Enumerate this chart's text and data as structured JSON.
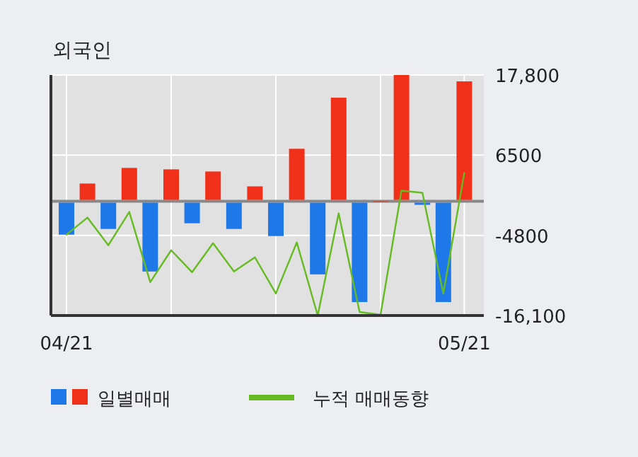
{
  "chart_data": {
    "type": "bar",
    "title": "외국인",
    "categories": [
      "04/21",
      null,
      null,
      null,
      null,
      null,
      null,
      null,
      null,
      null,
      null,
      null,
      null,
      null,
      null,
      null,
      null,
      null,
      null,
      "05/21"
    ],
    "series": [
      {
        "name": "일별매매",
        "colors": [
          "#1f78e8",
          "#f03018",
          "#1f78e8",
          "#f03018",
          "#1f78e8",
          "#f03018",
          "#1f78e8",
          "#f03018",
          "#1f78e8",
          "#f03018",
          "#1f78e8",
          "#f03018",
          "#1f78e8",
          "#f03018",
          "#1f78e8",
          "#f03018",
          "#f03018",
          "#1f78e8",
          "#1f78e8",
          "#f03018"
        ],
        "values": [
          -4700,
          2500,
          -3900,
          4700,
          -9900,
          4500,
          -3100,
          4200,
          -3900,
          2100,
          -4900,
          7400,
          -10300,
          14600,
          -14200,
          0,
          17800,
          -500,
          -14200,
          16900
        ]
      },
      {
        "name": "누적 매매동향",
        "type": "line",
        "color": "#66bb22",
        "values": [
          -4700,
          -2300,
          -6200,
          -1500,
          -11400,
          -6900,
          -10000,
          -5900,
          -9900,
          -7900,
          -13000,
          -5800,
          -16100,
          -1700,
          -15600,
          -16000,
          1500,
          1200,
          -13000,
          4000
        ]
      }
    ],
    "ylim": [
      -16100,
      17800
    ],
    "yticks": [
      {
        "value": 17800,
        "label": "17,800"
      },
      6500,
      -4800,
      {
        "value": -16100,
        "label": "-16,100"
      }
    ],
    "ref_lines": [
      {
        "axis": "y",
        "value": 0,
        "color": "#888888"
      }
    ],
    "grid": true,
    "legend": "bottom"
  }
}
